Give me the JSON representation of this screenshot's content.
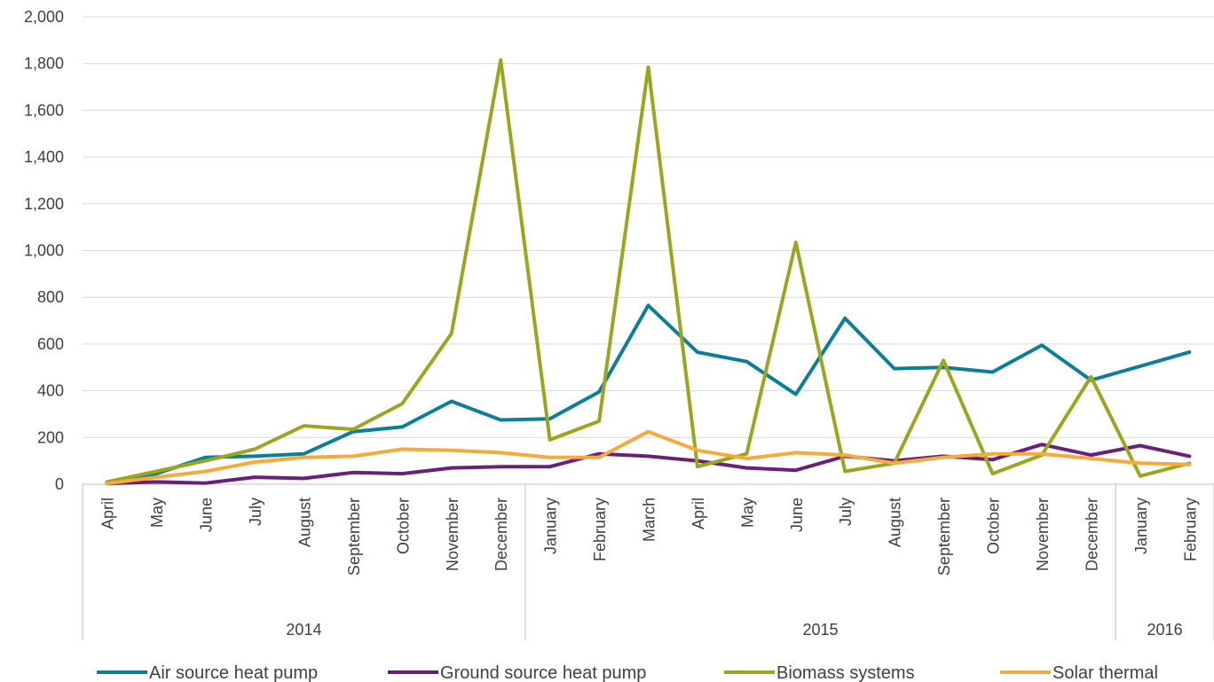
{
  "chart_data": {
    "type": "line",
    "x_months": [
      "April",
      "May",
      "June",
      "July",
      "August",
      "September",
      "October",
      "November",
      "December",
      "January",
      "February",
      "March",
      "April",
      "May",
      "June",
      "July",
      "August",
      "September",
      "October",
      "November",
      "December",
      "January",
      "February"
    ],
    "x_years": [
      {
        "label": "2014",
        "start": 0,
        "end": 8
      },
      {
        "label": "2015",
        "start": 9,
        "end": 20
      },
      {
        "label": "2016",
        "start": 21,
        "end": 22
      }
    ],
    "ylim": [
      0,
      2000
    ],
    "yticks": [
      "0",
      "200",
      "400",
      "600",
      "800",
      "1,000",
      "1,200",
      "1,400",
      "1,600",
      "1,800",
      "2,000"
    ],
    "grid": true,
    "legend_position": "bottom",
    "series": [
      {
        "name": "Air source heat pump",
        "color": "#0a7f9c",
        "values": [
          5,
          45,
          115,
          120,
          130,
          225,
          245,
          355,
          275,
          280,
          395,
          765,
          565,
          525,
          385,
          710,
          495,
          500,
          480,
          595,
          445,
          505,
          565
        ]
      },
      {
        "name": "Ground source heat pump",
        "color": "#6b1f7c",
        "values": [
          3,
          10,
          5,
          30,
          25,
          50,
          45,
          70,
          75,
          75,
          130,
          120,
          100,
          70,
          60,
          120,
          100,
          120,
          105,
          170,
          125,
          165,
          120
        ]
      },
      {
        "name": "Biomass systems",
        "color": "#9ba61c",
        "values": [
          10,
          55,
          100,
          150,
          250,
          235,
          345,
          645,
          1815,
          190,
          270,
          1785,
          75,
          130,
          1035,
          55,
          90,
          530,
          45,
          125,
          460,
          35,
          90
        ]
      },
      {
        "name": "Solar thermal",
        "color": "#f7a93a",
        "values": [
          3,
          30,
          55,
          95,
          115,
          120,
          150,
          145,
          135,
          115,
          115,
          225,
          145,
          110,
          135,
          125,
          90,
          115,
          130,
          130,
          110,
          90,
          85
        ]
      }
    ]
  }
}
